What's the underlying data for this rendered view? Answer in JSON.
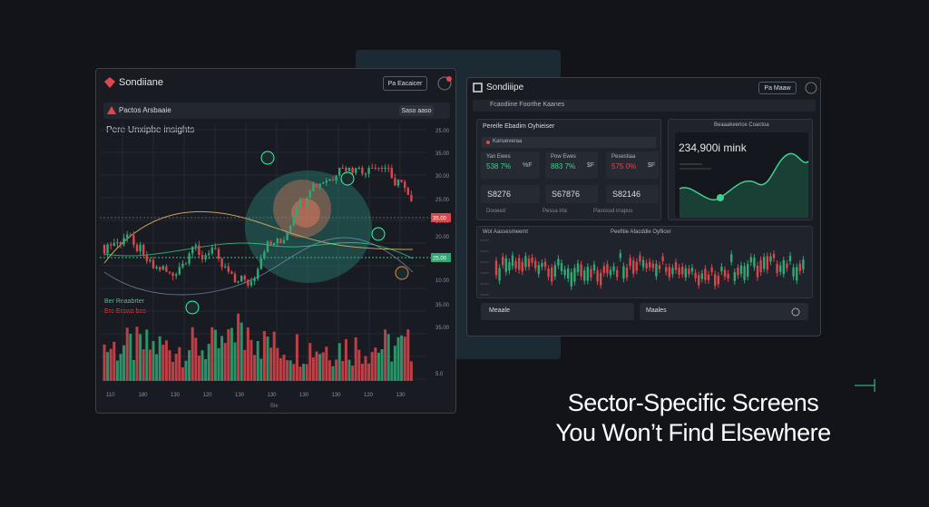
{
  "left_panel": {
    "title": "Sondiiane",
    "button": "Pa Eacaicer",
    "subbar": {
      "title": "Pactos Arsbaaie",
      "button": "Saso aaso"
    },
    "heading": "Pere Unxipbe insights",
    "axis_labels": [
      "25.00",
      "35.00",
      "30.00",
      "25.00",
      "20.00",
      "20.00",
      "15.00",
      "10.00",
      "35.00",
      "35.00",
      "5.0"
    ],
    "price_tags": [
      "35.00",
      "25.00"
    ],
    "bottom_labels": [
      "110",
      "180",
      "130",
      "120",
      "130",
      "130",
      "130",
      "130",
      "120",
      "130"
    ],
    "bottom_caption": "Ble",
    "legend": [
      "Ber Reaabrter",
      "Ere Erawa bes"
    ]
  },
  "right_panel": {
    "title": "Sondiiipe",
    "button": "Pa Maaw",
    "subbar": "Fcaodiine Foorthe Kaanes",
    "screen_card": {
      "title": "Pereife Ebadim Oyhieiser",
      "tab": "Kanueveraa",
      "stats": [
        {
          "label": "Yan Ewes",
          "value": "538 7%",
          "unit": "%F"
        },
        {
          "label": "Pow Ewes",
          "value": "883 7%",
          "unit": "$F"
        },
        {
          "label": "Pesestiaa",
          "value": "575 0%",
          "unit": "$F"
        }
      ],
      "totals": [
        "S8276",
        "S67876",
        "S82146"
      ],
      "footer": [
        "Dooeed",
        "Pessa irta",
        "Paoossd irrapus"
      ]
    },
    "value_card": {
      "title": "Beaaakeerice Coactoa",
      "value": "234,900i mink"
    },
    "lower_card": {
      "left_title": "Wot Aassesmeemt",
      "center_title": "Peefitie Afacddie Oyflicer",
      "buttons": [
        "Meaale",
        "Maales"
      ]
    }
  },
  "headline": [
    "Sector-Specific Screens",
    "You Won’t Find Elsewhere"
  ]
}
